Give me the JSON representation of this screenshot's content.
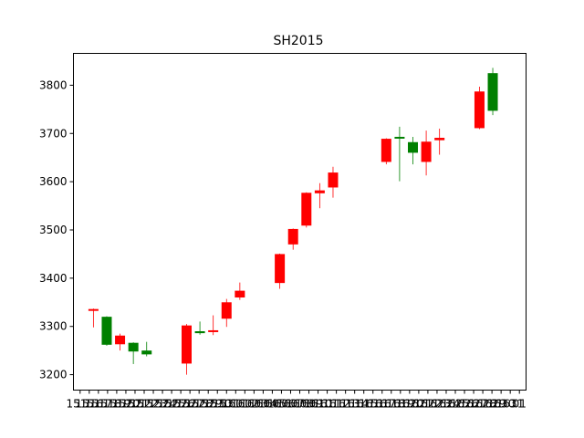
{
  "chart_data": {
    "type": "candlestick",
    "title": "SH2015",
    "xlabel": "",
    "ylabel": "",
    "ylim": [
      3168,
      3866
    ],
    "yticks": [
      3200,
      3300,
      3400,
      3500,
      3600,
      3700,
      3800
    ],
    "up_color": "#ff0000",
    "down_color": "#008000",
    "xtick_labels": [
      "1515",
      "1516",
      "1517",
      "1518",
      "1519",
      "1520",
      "1521",
      "1522",
      "1523",
      "1524",
      "1525",
      "1526",
      "1527",
      "1528",
      "1529",
      "1530",
      "1531",
      "1601",
      "1602",
      "1603",
      "1604",
      "1605",
      "1606",
      "1607",
      "1608",
      "1609",
      "1610",
      "1611",
      "1612",
      "1613",
      "1614",
      "1615",
      "1616",
      "1617",
      "1618",
      "1619",
      "1620",
      "1621",
      "1622",
      "1623",
      "1624",
      "1625",
      "1626",
      "1627",
      "1628",
      "1629",
      "1630",
      "1631",
      "01"
    ],
    "xtick_last_label": "01",
    "candles": [
      {
        "x": 1,
        "open": 3333,
        "close": 3336,
        "high": 3337,
        "low": 3298
      },
      {
        "x": 2,
        "open": 3320,
        "close": 3262,
        "high": 3321,
        "low": 3260
      },
      {
        "x": 3,
        "open": 3263,
        "close": 3281,
        "high": 3285,
        "low": 3250
      },
      {
        "x": 4,
        "open": 3266,
        "close": 3248,
        "high": 3267,
        "low": 3222
      },
      {
        "x": 5,
        "open": 3250,
        "close": 3242,
        "high": 3268,
        "low": 3238
      },
      {
        "x": 8,
        "open": 3223,
        "close": 3302,
        "high": 3305,
        "low": 3200
      },
      {
        "x": 9,
        "open": 3290,
        "close": 3286,
        "high": 3310,
        "low": 3283
      },
      {
        "x": 10,
        "open": 3290,
        "close": 3292,
        "high": 3323,
        "low": 3282
      },
      {
        "x": 11,
        "open": 3316,
        "close": 3350,
        "high": 3357,
        "low": 3299
      },
      {
        "x": 12,
        "open": 3360,
        "close": 3374,
        "high": 3391,
        "low": 3355
      },
      {
        "x": 15,
        "open": 3390,
        "close": 3450,
        "high": 3451,
        "low": 3378
      },
      {
        "x": 16,
        "open": 3470,
        "close": 3502,
        "high": 3503,
        "low": 3459
      },
      {
        "x": 17,
        "open": 3509,
        "close": 3577,
        "high": 3578,
        "low": 3505
      },
      {
        "x": 18,
        "open": 3576,
        "close": 3582,
        "high": 3597,
        "low": 3545
      },
      {
        "x": 19,
        "open": 3588,
        "close": 3619,
        "high": 3631,
        "low": 3567
      },
      {
        "x": 23,
        "open": 3641,
        "close": 3689,
        "high": 3690,
        "low": 3636
      },
      {
        "x": 24,
        "open": 3693,
        "close": 3692,
        "high": 3714,
        "low": 3601
      },
      {
        "x": 25,
        "open": 3682,
        "close": 3660,
        "high": 3693,
        "low": 3636
      },
      {
        "x": 26,
        "open": 3641,
        "close": 3683,
        "high": 3706,
        "low": 3613
      },
      {
        "x": 27,
        "open": 3686,
        "close": 3691,
        "high": 3710,
        "low": 3656
      },
      {
        "x": 30,
        "open": 3711,
        "close": 3787,
        "high": 3797,
        "low": 3709
      },
      {
        "x": 31,
        "open": 3825,
        "close": 3747,
        "high": 3836,
        "low": 3738
      }
    ],
    "xlim": [
      -0.5,
      33.5
    ]
  }
}
